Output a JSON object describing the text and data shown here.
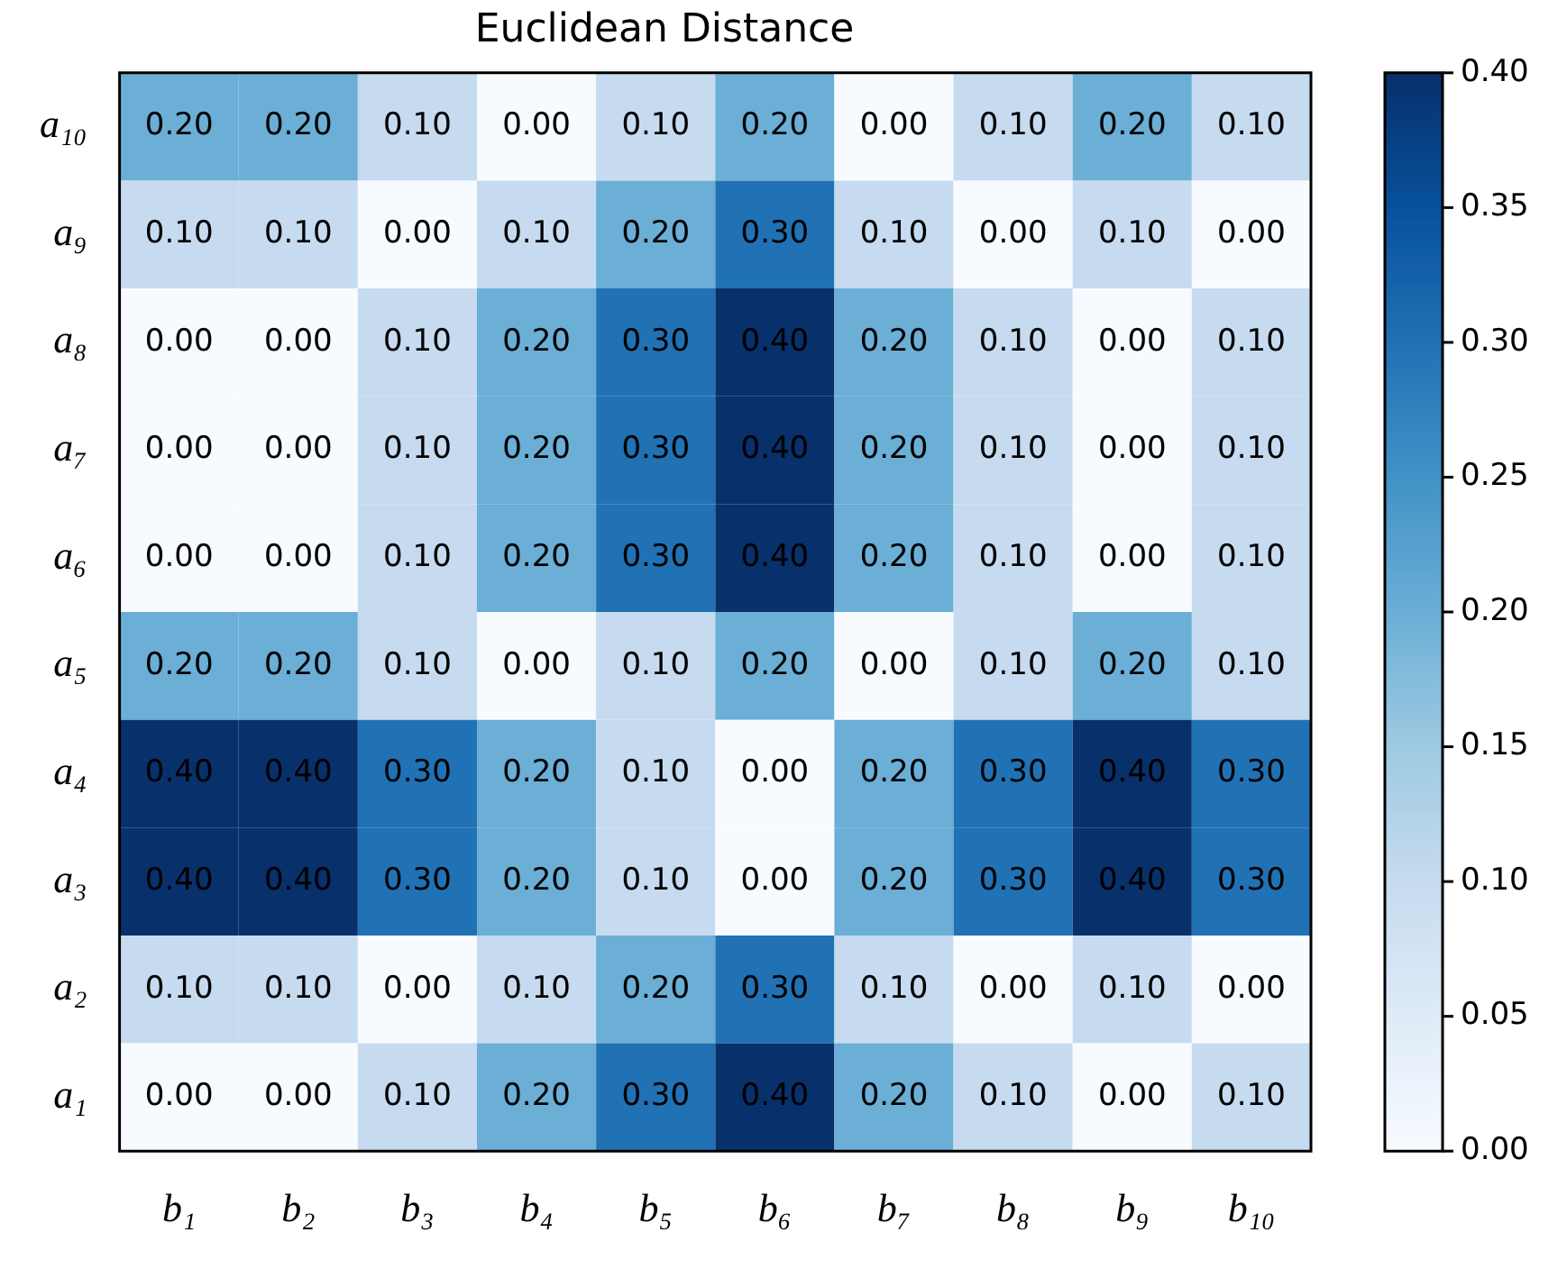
{
  "chart_data": {
    "type": "heatmap",
    "title": "Euclidean Distance",
    "categories": [
      "b₁",
      "b₂",
      "b₃",
      "b₄",
      "b₅",
      "b₆",
      "b₇",
      "b₈",
      "b₉",
      "b₁₀"
    ],
    "y_categories": [
      "a₁₀",
      "a₉",
      "a₈",
      "a₇",
      "a₆",
      "a₅",
      "a₄",
      "a₃",
      "a₂",
      "a₁"
    ],
    "cells": [
      [
        0.2,
        0.2,
        0.1,
        0,
        0.1,
        0.2,
        0,
        0.1,
        0.2,
        0.1
      ],
      [
        0.1,
        0.1,
        0,
        0.1,
        0.2,
        0.3,
        0.1,
        0,
        0.1,
        0
      ],
      [
        0,
        0,
        0.1,
        0.2,
        0.3,
        0.4,
        0.2,
        0.1,
        0,
        0.1
      ],
      [
        0,
        0,
        0.1,
        0.2,
        0.3,
        0.4,
        0.2,
        0.1,
        0,
        0.1
      ],
      [
        0,
        0,
        0.1,
        0.2,
        0.3,
        0.4,
        0.2,
        0.1,
        0,
        0.1
      ],
      [
        0.2,
        0.2,
        0.1,
        0,
        0.1,
        0.2,
        0,
        0.1,
        0.2,
        0.1
      ],
      [
        0.4,
        0.4,
        0.3,
        0.2,
        0.1,
        0,
        0.2,
        0.3,
        0.4,
        0.3
      ],
      [
        0.4,
        0.4,
        0.3,
        0.2,
        0.1,
        0,
        0.2,
        0.3,
        0.4,
        0.3
      ],
      [
        0.1,
        0.1,
        0,
        0.1,
        0.2,
        0.3,
        0.1,
        0,
        0.1,
        0
      ],
      [
        0,
        0,
        0.1,
        0.2,
        0.3,
        0.4,
        0.2,
        0.1,
        0,
        0.1
      ]
    ],
    "cell_labels": [
      [
        "0.20",
        "0.20",
        "0.10",
        "0.00",
        "0.10",
        "0.20",
        "0.00",
        "0.10",
        "0.20",
        "0.10"
      ],
      [
        "0.10",
        "0.10",
        "0.00",
        "0.10",
        "0.20",
        "0.30",
        "0.10",
        "0.00",
        "0.10",
        "0.00"
      ],
      [
        "0.00",
        "0.00",
        "0.10",
        "0.20",
        "0.30",
        "0.40",
        "0.20",
        "0.10",
        "0.00",
        "0.10"
      ],
      [
        "0.00",
        "0.00",
        "0.10",
        "0.20",
        "0.30",
        "0.40",
        "0.20",
        "0.10",
        "0.00",
        "0.10"
      ],
      [
        "0.00",
        "0.00",
        "0.10",
        "0.20",
        "0.30",
        "0.40",
        "0.20",
        "0.10",
        "0.00",
        "0.10"
      ],
      [
        "0.20",
        "0.20",
        "0.10",
        "0.00",
        "0.10",
        "0.20",
        "0.00",
        "0.10",
        "0.20",
        "0.10"
      ],
      [
        "0.40",
        "0.40",
        "0.30",
        "0.20",
        "0.10",
        "0.00",
        "0.20",
        "0.30",
        "0.40",
        "0.30"
      ],
      [
        "0.40",
        "0.40",
        "0.30",
        "0.20",
        "0.10",
        "0.00",
        "0.20",
        "0.30",
        "0.40",
        "0.30"
      ],
      [
        "0.10",
        "0.10",
        "0.00",
        "0.10",
        "0.20",
        "0.30",
        "0.10",
        "0.00",
        "0.10",
        "0.00"
      ],
      [
        "0.00",
        "0.00",
        "0.10",
        "0.20",
        "0.30",
        "0.40",
        "0.20",
        "0.10",
        "0.00",
        "0.10"
      ]
    ],
    "clim": [
      0,
      0.4
    ],
    "cticks": [
      {
        "value": 0,
        "label": "0.00"
      },
      {
        "value": 0.05,
        "label": "0.05"
      },
      {
        "value": 0.1,
        "label": "0.10"
      },
      {
        "value": 0.15,
        "label": "0.15"
      },
      {
        "value": 0.2,
        "label": "0.20"
      },
      {
        "value": 0.25,
        "label": "0.25"
      },
      {
        "value": 0.3,
        "label": "0.30"
      },
      {
        "value": 0.35,
        "label": "0.35"
      },
      {
        "value": 0.4,
        "label": "0.40"
      }
    ]
  }
}
